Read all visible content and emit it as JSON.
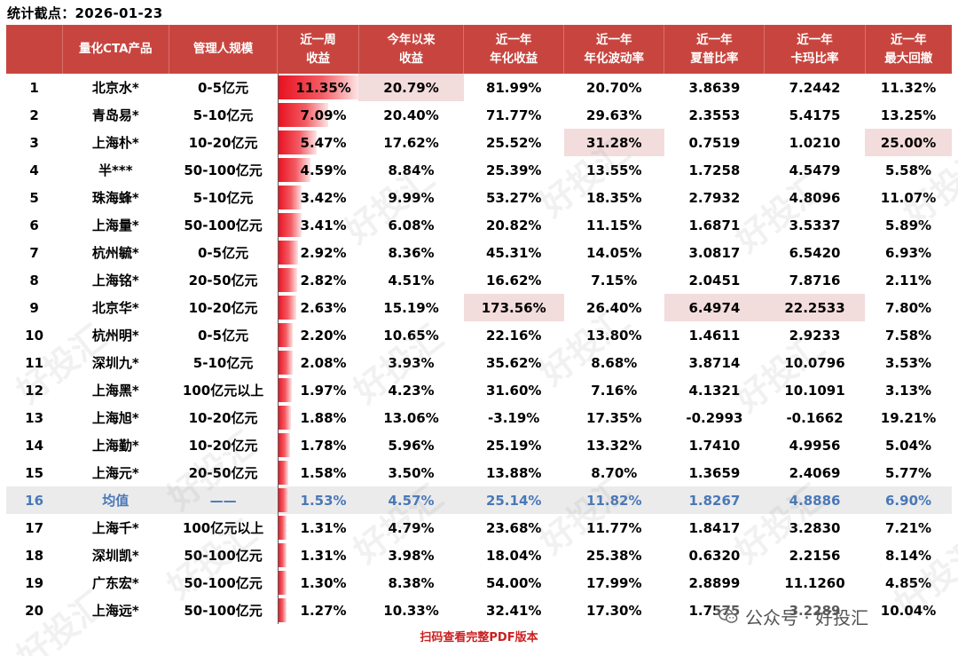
{
  "title": "统计截点：2026-01-23",
  "headers": [
    "",
    "量化CTA产品",
    "管理人规模",
    "近一周\n收益",
    "今年以来\n收益",
    "近一年\n年化收益",
    "近一年\n年化波动率",
    "近一年\n夏普比率",
    "近一年\n卡玛比率",
    "近一年\n最大回撤"
  ],
  "rows": [
    {
      "rank": "1",
      "name": "北京水*",
      "scale": "0-5亿元",
      "week": "11.35%",
      "week_value": 11.35,
      "ytd": "20.79%",
      "annret": "81.99%",
      "vol": "20.70%",
      "sharpe": "3.8639",
      "calmar": "7.2442",
      "mdd": "11.32%"
    },
    {
      "rank": "2",
      "name": "青岛易*",
      "scale": "5-10亿元",
      "week": "7.09%",
      "week_value": 7.09,
      "ytd": "20.40%",
      "annret": "71.77%",
      "vol": "29.63%",
      "sharpe": "2.3553",
      "calmar": "5.4175",
      "mdd": "13.25%"
    },
    {
      "rank": "3",
      "name": "上海朴*",
      "scale": "10-20亿元",
      "week": "5.47%",
      "week_value": 5.47,
      "ytd": "17.62%",
      "annret": "25.52%",
      "vol": "31.28%",
      "sharpe": "0.7519",
      "calmar": "1.0210",
      "mdd": "25.00%"
    },
    {
      "rank": "4",
      "name": "半***",
      "scale": "50-100亿元",
      "week": "4.59%",
      "week_value": 4.59,
      "ytd": "8.84%",
      "annret": "25.39%",
      "vol": "13.55%",
      "sharpe": "1.7258",
      "calmar": "4.5479",
      "mdd": "5.58%"
    },
    {
      "rank": "5",
      "name": "珠海蜂*",
      "scale": "5-10亿元",
      "week": "3.42%",
      "week_value": 3.42,
      "ytd": "9.99%",
      "annret": "53.27%",
      "vol": "18.35%",
      "sharpe": "2.7932",
      "calmar": "4.8096",
      "mdd": "11.07%"
    },
    {
      "rank": "6",
      "name": "上海量*",
      "scale": "50-100亿元",
      "week": "3.41%",
      "week_value": 3.41,
      "ytd": "6.08%",
      "annret": "20.82%",
      "vol": "11.15%",
      "sharpe": "1.6871",
      "calmar": "3.5337",
      "mdd": "5.89%"
    },
    {
      "rank": "7",
      "name": "杭州毓*",
      "scale": "0-5亿元",
      "week": "2.92%",
      "week_value": 2.92,
      "ytd": "8.36%",
      "annret": "45.31%",
      "vol": "14.05%",
      "sharpe": "3.0817",
      "calmar": "6.5420",
      "mdd": "6.93%"
    },
    {
      "rank": "8",
      "name": "上海铭*",
      "scale": "20-50亿元",
      "week": "2.82%",
      "week_value": 2.82,
      "ytd": "4.51%",
      "annret": "16.62%",
      "vol": "7.15%",
      "sharpe": "2.0451",
      "calmar": "7.8716",
      "mdd": "2.11%"
    },
    {
      "rank": "9",
      "name": "北京华*",
      "scale": "10-20亿元",
      "week": "2.63%",
      "week_value": 2.63,
      "ytd": "15.19%",
      "annret": "173.56%",
      "vol": "26.40%",
      "sharpe": "6.4974",
      "calmar": "22.2533",
      "mdd": "7.80%"
    },
    {
      "rank": "10",
      "name": "杭州明*",
      "scale": "0-5亿元",
      "week": "2.20%",
      "week_value": 2.2,
      "ytd": "10.65%",
      "annret": "22.16%",
      "vol": "13.80%",
      "sharpe": "1.4611",
      "calmar": "2.9233",
      "mdd": "7.58%"
    },
    {
      "rank": "11",
      "name": "深圳九*",
      "scale": "5-10亿元",
      "week": "2.08%",
      "week_value": 2.08,
      "ytd": "3.93%",
      "annret": "35.62%",
      "vol": "8.68%",
      "sharpe": "3.8714",
      "calmar": "10.0796",
      "mdd": "3.53%"
    },
    {
      "rank": "12",
      "name": "上海黑*",
      "scale": "100亿元以上",
      "week": "1.97%",
      "week_value": 1.97,
      "ytd": "4.23%",
      "annret": "31.60%",
      "vol": "7.16%",
      "sharpe": "4.1321",
      "calmar": "10.1091",
      "mdd": "3.13%"
    },
    {
      "rank": "13",
      "name": "上海旭*",
      "scale": "10-20亿元",
      "week": "1.88%",
      "week_value": 1.88,
      "ytd": "13.06%",
      "annret": "-3.19%",
      "vol": "17.35%",
      "sharpe": "-0.2993",
      "calmar": "-0.1662",
      "mdd": "19.21%"
    },
    {
      "rank": "14",
      "name": "上海勤*",
      "scale": "10-20亿元",
      "week": "1.78%",
      "week_value": 1.78,
      "ytd": "5.96%",
      "annret": "25.19%",
      "vol": "13.32%",
      "sharpe": "1.7410",
      "calmar": "4.9956",
      "mdd": "5.04%"
    },
    {
      "rank": "15",
      "name": "上海元*",
      "scale": "20-50亿元",
      "week": "1.58%",
      "week_value": 1.58,
      "ytd": "3.50%",
      "annret": "13.88%",
      "vol": "8.70%",
      "sharpe": "1.3659",
      "calmar": "2.4069",
      "mdd": "5.77%"
    },
    {
      "rank": "16",
      "name": "均值",
      "scale": "——",
      "week": "1.53%",
      "week_value": 1.53,
      "ytd": "4.57%",
      "annret": "25.14%",
      "vol": "11.82%",
      "sharpe": "1.8267",
      "calmar": "4.8886",
      "mdd": "6.90%",
      "is_avg": true
    },
    {
      "rank": "17",
      "name": "上海千*",
      "scale": "100亿元以上",
      "week": "1.31%",
      "week_value": 1.31,
      "ytd": "4.79%",
      "annret": "23.68%",
      "vol": "11.77%",
      "sharpe": "1.8417",
      "calmar": "3.2830",
      "mdd": "7.21%"
    },
    {
      "rank": "18",
      "name": "深圳凯*",
      "scale": "50-100亿元",
      "week": "1.31%",
      "week_value": 1.31,
      "ytd": "3.98%",
      "annret": "18.04%",
      "vol": "25.38%",
      "sharpe": "0.6320",
      "calmar": "2.2156",
      "mdd": "8.14%"
    },
    {
      "rank": "19",
      "name": "广东宏*",
      "scale": "50-100亿元",
      "week": "1.30%",
      "week_value": 1.3,
      "ytd": "8.38%",
      "annret": "54.00%",
      "vol": "17.99%",
      "sharpe": "2.8899",
      "calmar": "11.1260",
      "mdd": "4.85%"
    },
    {
      "rank": "20",
      "name": "上海远*",
      "scale": "50-100亿元",
      "week": "1.27%",
      "week_value": 1.27,
      "ytd": "10.33%",
      "annret": "32.41%",
      "vol": "17.30%",
      "sharpe": "1.7575",
      "calmar": "3.2289",
      "mdd": "10.04%"
    }
  ],
  "highlights": [
    {
      "row": 0,
      "col": "ytd"
    },
    {
      "row": 2,
      "col": "vol"
    },
    {
      "row": 2,
      "col": "mdd"
    },
    {
      "row": 8,
      "col": "annret"
    },
    {
      "row": 8,
      "col": "sharpe"
    },
    {
      "row": 8,
      "col": "calmar"
    }
  ],
  "bar_max_value": 11.35,
  "colors": {
    "header_bg": "#c8453f",
    "bar": "#e8101f",
    "highlight": "#f3dcdc",
    "avg_text": "#4a78b8",
    "footer_text": "#cc1f1f"
  },
  "watermark_text": "好投汇",
  "footer_note": "扫码查看完整PDF版本",
  "brand": {
    "icon": "wechat-icon",
    "text": "公众号 · 好投汇"
  }
}
